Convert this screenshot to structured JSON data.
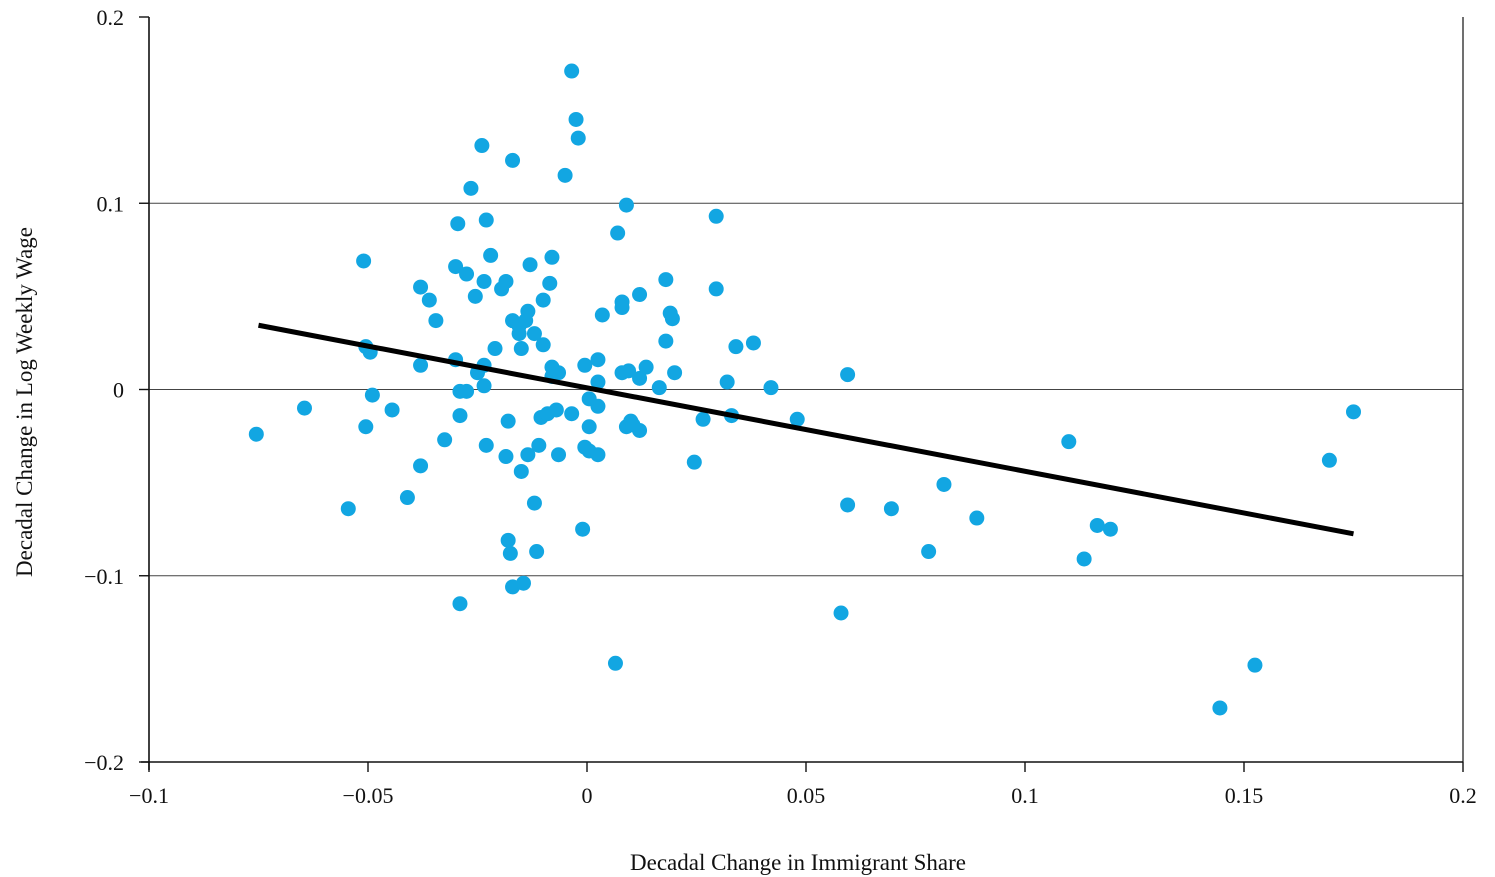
{
  "chart_data": {
    "type": "scatter",
    "title": "",
    "xlabel": "Decadal Change in Immigrant Share",
    "ylabel": "Decadal Change in Log Weekly Wage",
    "xlim": [
      -0.1,
      0.2
    ],
    "ylim": [
      -0.2,
      0.2
    ],
    "x_ticks": [
      -0.1,
      -0.05,
      0,
      0.05,
      0.1,
      0.15,
      0.2
    ],
    "x_tick_labels": [
      "−0.1",
      "−0.05",
      "0",
      "0.05",
      "0.1",
      "0.15",
      "0.2"
    ],
    "y_ticks": [
      -0.2,
      -0.1,
      0,
      0.1,
      0.2
    ],
    "y_tick_labels": [
      "−0.2",
      "−0.1",
      "0",
      "0.1",
      "0.2"
    ],
    "grid": "horizontal lines at y = -0.1, 0, 0.1",
    "legend": "none",
    "colors": {
      "points": "#12a6e2",
      "fit_line": "#000000",
      "grid": "#444444",
      "axis": "#111111"
    },
    "fit_line": {
      "x": [
        -0.075,
        0.175
      ],
      "y": [
        0.0345,
        -0.0775
      ]
    },
    "points": [
      [
        -0.0755,
        -0.024
      ],
      [
        -0.0645,
        -0.01
      ],
      [
        -0.0545,
        -0.064
      ],
      [
        -0.051,
        0.069
      ],
      [
        -0.0505,
        0.023
      ],
      [
        -0.0505,
        -0.02
      ],
      [
        -0.0495,
        0.02
      ],
      [
        -0.049,
        -0.003
      ],
      [
        -0.0445,
        -0.011
      ],
      [
        -0.041,
        -0.058
      ],
      [
        -0.038,
        0.055
      ],
      [
        -0.038,
        0.013
      ],
      [
        -0.038,
        -0.041
      ],
      [
        -0.036,
        0.048
      ],
      [
        -0.0345,
        0.037
      ],
      [
        -0.0325,
        -0.027
      ],
      [
        -0.03,
        0.066
      ],
      [
        -0.03,
        0.016
      ],
      [
        -0.0295,
        0.089
      ],
      [
        -0.029,
        -0.001
      ],
      [
        -0.029,
        -0.014
      ],
      [
        -0.029,
        -0.115
      ],
      [
        -0.0275,
        0.062
      ],
      [
        -0.0275,
        -0.001
      ],
      [
        -0.0265,
        0.108
      ],
      [
        -0.0255,
        0.05
      ],
      [
        -0.025,
        0.009
      ],
      [
        -0.024,
        0.131
      ],
      [
        -0.0235,
        0.058
      ],
      [
        -0.0235,
        0.013
      ],
      [
        -0.0235,
        0.002
      ],
      [
        -0.023,
        0.091
      ],
      [
        -0.023,
        -0.03
      ],
      [
        -0.022,
        0.072
      ],
      [
        -0.021,
        0.022
      ],
      [
        -0.0195,
        0.054
      ],
      [
        -0.0185,
        0.058
      ],
      [
        -0.0185,
        -0.036
      ],
      [
        -0.018,
        -0.017
      ],
      [
        -0.018,
        -0.081
      ],
      [
        -0.0175,
        -0.088
      ],
      [
        -0.017,
        0.123
      ],
      [
        -0.017,
        0.037
      ],
      [
        -0.017,
        -0.106
      ],
      [
        -0.0155,
        0.034
      ],
      [
        -0.0155,
        0.03
      ],
      [
        -0.015,
        0.022
      ],
      [
        -0.015,
        -0.044
      ],
      [
        -0.0145,
        -0.104
      ],
      [
        -0.014,
        0.037
      ],
      [
        -0.0135,
        0.042
      ],
      [
        -0.0135,
        -0.035
      ],
      [
        -0.013,
        0.067
      ],
      [
        -0.012,
        0.03
      ],
      [
        -0.012,
        -0.061
      ],
      [
        -0.0115,
        -0.087
      ],
      [
        -0.011,
        -0.03
      ],
      [
        -0.0105,
        -0.015
      ],
      [
        -0.01,
        0.048
      ],
      [
        -0.01,
        0.024
      ],
      [
        -0.009,
        -0.013
      ],
      [
        -0.0085,
        0.057
      ],
      [
        -0.008,
        0.071
      ],
      [
        -0.008,
        0.012
      ],
      [
        -0.008,
        0.007
      ],
      [
        -0.007,
        -0.011
      ],
      [
        -0.0065,
        0.009
      ],
      [
        -0.0065,
        -0.035
      ],
      [
        -0.005,
        0.115
      ],
      [
        -0.0035,
        0.171
      ],
      [
        -0.0035,
        -0.013
      ],
      [
        -0.0025,
        0.145
      ],
      [
        -0.002,
        0.135
      ],
      [
        -0.001,
        -0.075
      ],
      [
        -0.0005,
        0.013
      ],
      [
        -0.0005,
        -0.031
      ],
      [
        0.0005,
        -0.005
      ],
      [
        0.0005,
        -0.02
      ],
      [
        0.0005,
        -0.033
      ],
      [
        0.0025,
        0.016
      ],
      [
        0.0025,
        0.004
      ],
      [
        0.0025,
        -0.009
      ],
      [
        0.0025,
        -0.035
      ],
      [
        0.0035,
        0.04
      ],
      [
        0.0065,
        -0.147
      ],
      [
        0.007,
        0.084
      ],
      [
        0.008,
        0.047
      ],
      [
        0.008,
        0.044
      ],
      [
        0.008,
        0.009
      ],
      [
        0.009,
        0.099
      ],
      [
        0.009,
        -0.02
      ],
      [
        0.0095,
        0.01
      ],
      [
        0.01,
        -0.017
      ],
      [
        0.0105,
        -0.019
      ],
      [
        0.012,
        0.051
      ],
      [
        0.012,
        0.006
      ],
      [
        0.012,
        -0.022
      ],
      [
        0.0135,
        0.012
      ],
      [
        0.0165,
        0.001
      ],
      [
        0.018,
        0.059
      ],
      [
        0.018,
        0.026
      ],
      [
        0.019,
        0.041
      ],
      [
        0.0195,
        0.038
      ],
      [
        0.02,
        0.009
      ],
      [
        0.0245,
        -0.039
      ],
      [
        0.0265,
        -0.016
      ],
      [
        0.0295,
        0.093
      ],
      [
        0.0295,
        0.054
      ],
      [
        0.032,
        0.004
      ],
      [
        0.033,
        -0.014
      ],
      [
        0.034,
        0.023
      ],
      [
        0.038,
        0.025
      ],
      [
        0.042,
        0.001
      ],
      [
        0.048,
        -0.016
      ],
      [
        0.058,
        -0.12
      ],
      [
        0.0595,
        0.008
      ],
      [
        0.0595,
        -0.062
      ],
      [
        0.0695,
        -0.064
      ],
      [
        0.078,
        -0.087
      ],
      [
        0.0815,
        -0.051
      ],
      [
        0.089,
        -0.069
      ],
      [
        0.11,
        -0.028
      ],
      [
        0.1135,
        -0.091
      ],
      [
        0.1165,
        -0.073
      ],
      [
        0.1195,
        -0.075
      ],
      [
        0.1445,
        -0.171
      ],
      [
        0.1525,
        -0.148
      ],
      [
        0.1695,
        -0.038
      ],
      [
        0.175,
        -0.012
      ]
    ]
  }
}
